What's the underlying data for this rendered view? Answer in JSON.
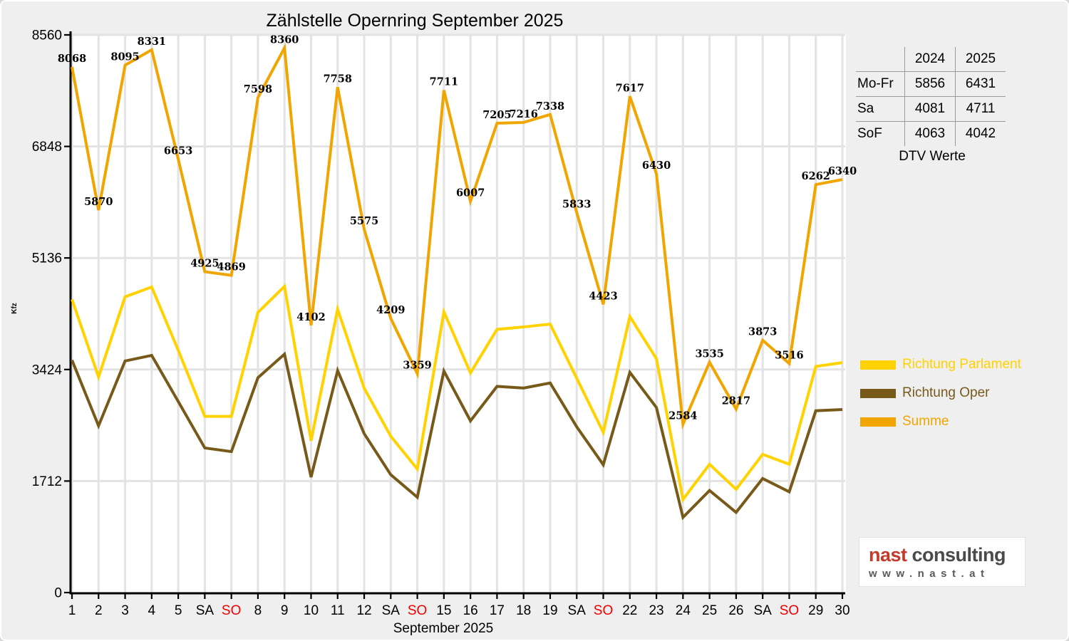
{
  "chart_data": {
    "type": "line",
    "title": "Zählstelle Opernring September 2025",
    "xlabel": "September 2025",
    "ylabel": "Kfz",
    "ylim": [
      0,
      8560
    ],
    "yticks": [
      0,
      1712,
      3424,
      5136,
      6848,
      8560
    ],
    "grid": true,
    "legend_position": "right",
    "sunday_label": "SO",
    "sunday_color": "#ee0000",
    "categories": [
      "1",
      "2",
      "3",
      "4",
      "5",
      "SA",
      "SO",
      "8",
      "9",
      "10",
      "11",
      "12",
      "SA",
      "SO",
      "15",
      "16",
      "17",
      "18",
      "19",
      "SA",
      "SO",
      "22",
      "23",
      "24",
      "25",
      "26",
      "SA",
      "SO",
      "29",
      "30"
    ],
    "series": [
      {
        "name": "Richtung Parlament",
        "color": "#FFD200",
        "values": [
          4500,
          3310,
          4540,
          4690,
          3720,
          2705,
          2705,
          4300,
          4700,
          2330,
          4350,
          3136,
          2400,
          1896,
          4310,
          3372,
          4040,
          4077,
          4121,
          3289,
          2461,
          4237,
          3590,
          1430,
          1969,
          1586,
          2122,
          1969,
          3471,
          3530
        ]
      },
      {
        "name": "Richtung Oper",
        "color": "#77591A",
        "values": [
          3568,
          2560,
          3555,
          3641,
          2933,
          2220,
          2164,
          3298,
          3660,
          1772,
          3408,
          2439,
          1809,
          1463,
          3401,
          2635,
          3165,
          3139,
          3217,
          2544,
          1962,
          3380,
          2840,
          1154,
          1566,
          1231,
          1751,
          1547,
          2791,
          2810
        ]
      },
      {
        "name": "Summe",
        "color": "#F0A500",
        "show_labels": true,
        "values": [
          8068,
          5870,
          8095,
          8331,
          6653,
          4925,
          4869,
          7598,
          8360,
          4102,
          7758,
          5575,
          4209,
          3359,
          7711,
          6007,
          7205,
          7216,
          7338,
          5833,
          4423,
          7617,
          6430,
          2584,
          3535,
          2817,
          3873,
          3516,
          6262,
          6340
        ]
      }
    ]
  },
  "dtv_table": {
    "col_headers": [
      "2024",
      "2025"
    ],
    "rows": [
      {
        "label": "Mo-Fr",
        "values": [
          "5856",
          "6431"
        ]
      },
      {
        "label": "Sa",
        "values": [
          "4081",
          "4711"
        ]
      },
      {
        "label": "SoF",
        "values": [
          "4063",
          "4042"
        ]
      }
    ],
    "caption": "DTV Werte"
  },
  "logo": {
    "brand_red": "nast",
    "brand_gray": "consulting",
    "url": "www.nast.at"
  }
}
